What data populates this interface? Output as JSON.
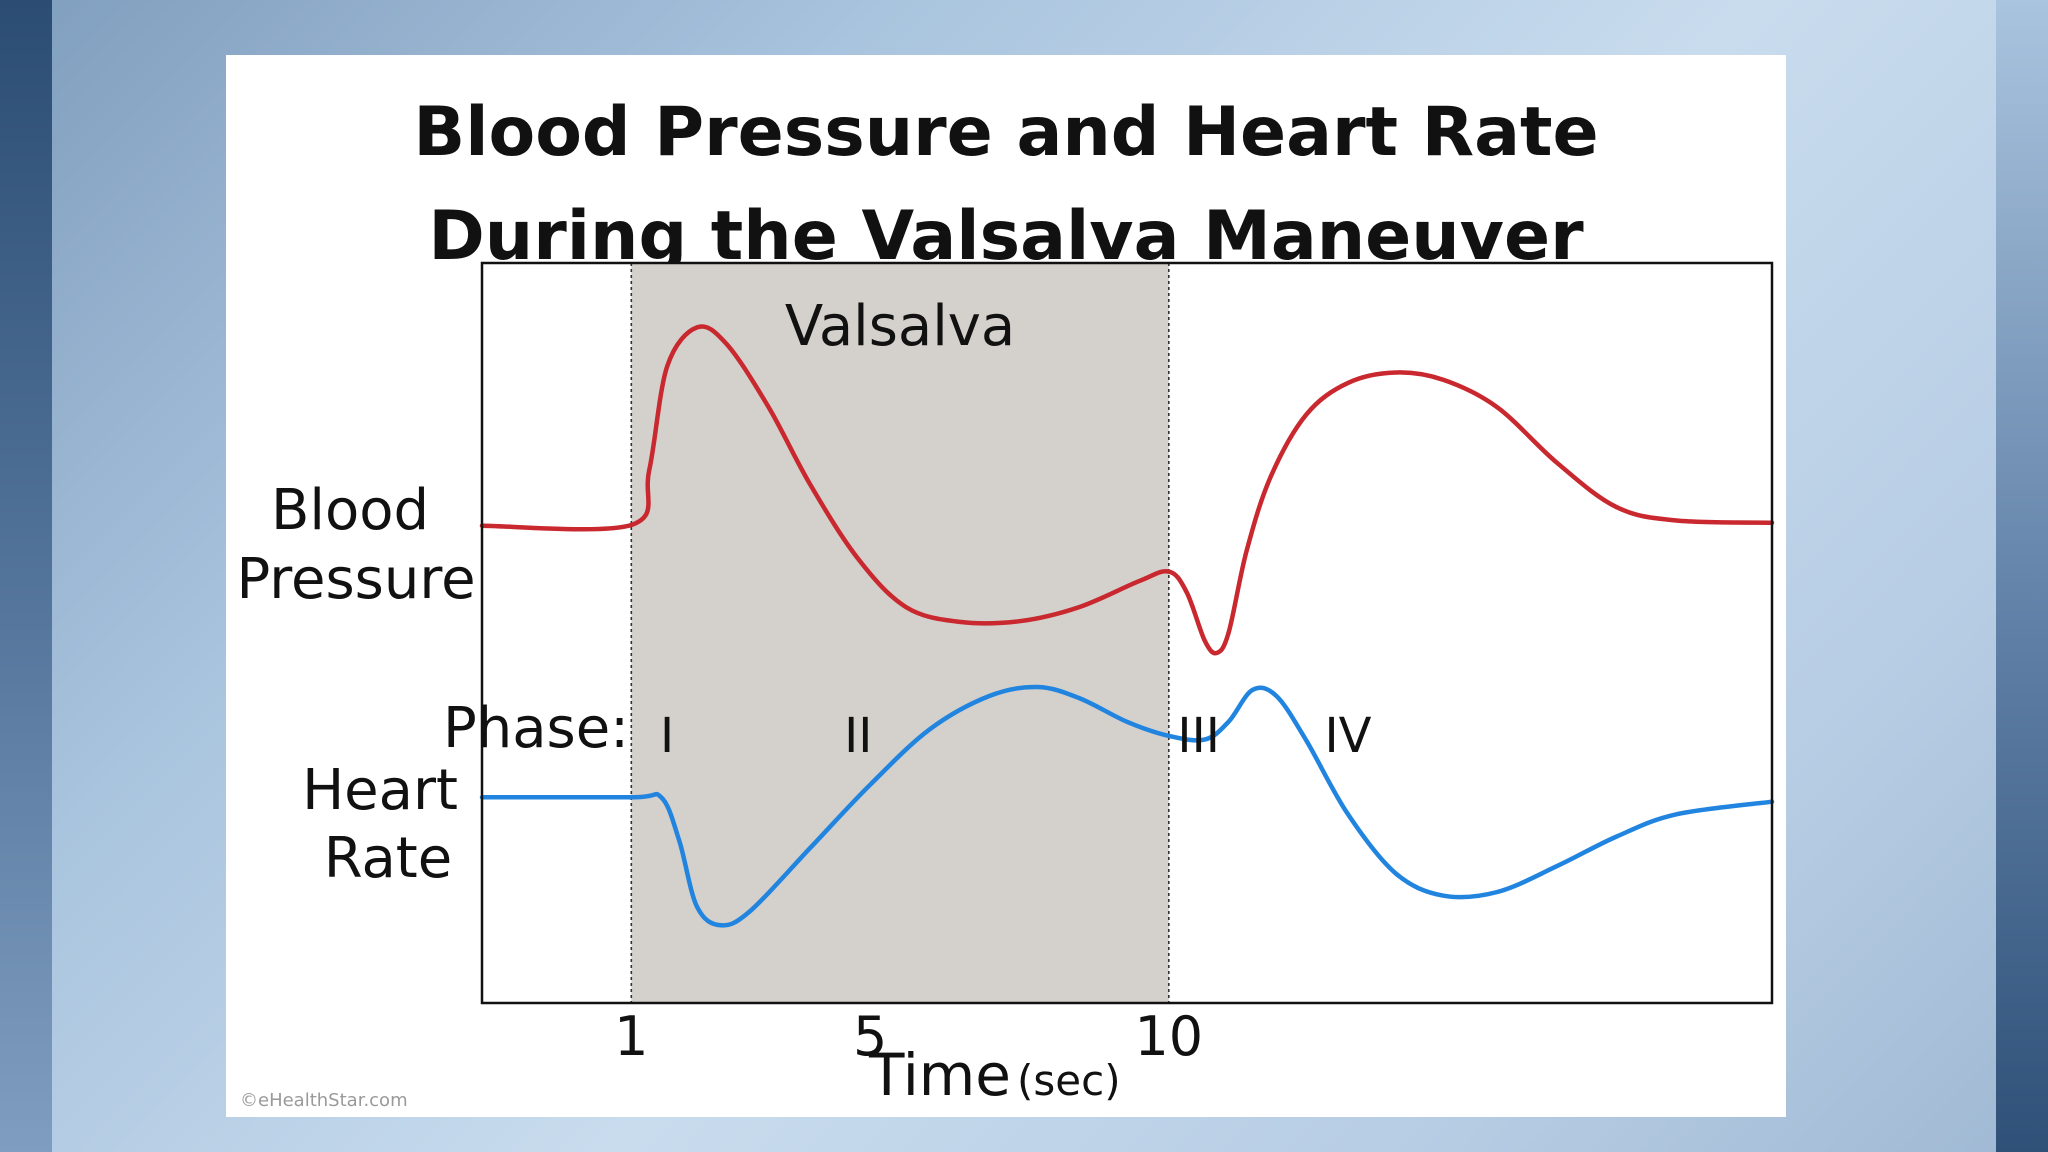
{
  "chart_data": {
    "type": "line",
    "title": [
      "Blood Pressure and Heart Rate",
      "During the Valsalva Maneuver"
    ],
    "xlabel": "Time",
    "xlabel_unit": "(sec)",
    "x_ticks": [
      "1",
      "5",
      "10"
    ],
    "x_tick_values": [
      1,
      5,
      10
    ],
    "xlim": [
      -1.5,
      20.1
    ],
    "ylim": [
      0,
      100
    ],
    "shaded_region": {
      "label": "Valsalva",
      "x": [
        1,
        10
      ],
      "color": "#d4d0cc"
    },
    "phase_label": "Phase:",
    "phases": [
      {
        "label": "I",
        "x": 1.6
      },
      {
        "label": "II",
        "x": 4.8
      },
      {
        "label": "III",
        "x": 10.5
      },
      {
        "label": "IV",
        "x": 13.0
      }
    ],
    "series": [
      {
        "name": "Blood Pressure",
        "label_lines": [
          "Blood",
          "Pressure"
        ],
        "color": "#c8282e",
        "points": [
          [
            -1.5,
            64.5
          ],
          [
            1.0,
            64.6
          ],
          [
            1.3,
            72
          ],
          [
            1.6,
            86
          ],
          [
            2.1,
            91.3
          ],
          [
            2.6,
            89
          ],
          [
            3.3,
            80.5
          ],
          [
            4.0,
            70
          ],
          [
            4.8,
            60
          ],
          [
            5.6,
            53.5
          ],
          [
            6.5,
            51.5
          ],
          [
            7.5,
            51.6
          ],
          [
            8.5,
            53.5
          ],
          [
            9.5,
            57
          ],
          [
            10.0,
            58.3
          ],
          [
            10.3,
            55.5
          ],
          [
            10.6,
            49
          ],
          [
            10.8,
            47.3
          ],
          [
            11.0,
            50
          ],
          [
            11.3,
            61
          ],
          [
            11.7,
            71
          ],
          [
            12.3,
            79.5
          ],
          [
            13.0,
            83.8
          ],
          [
            13.8,
            85.2
          ],
          [
            14.6,
            84.2
          ],
          [
            15.5,
            80.5
          ],
          [
            16.5,
            73
          ],
          [
            17.5,
            67
          ],
          [
            18.5,
            65.2
          ],
          [
            20.1,
            64.9
          ]
        ]
      },
      {
        "name": "Heart Rate",
        "label_lines": [
          "Heart",
          "Rate"
        ],
        "color": "#2185e0",
        "points": [
          [
            -1.5,
            27.8
          ],
          [
            1.0,
            27.8
          ],
          [
            1.5,
            27.8
          ],
          [
            1.8,
            22
          ],
          [
            2.1,
            13
          ],
          [
            2.5,
            10.5
          ],
          [
            3.0,
            12.5
          ],
          [
            4.0,
            21
          ],
          [
            5.0,
            29.5
          ],
          [
            6.0,
            37
          ],
          [
            7.0,
            41.5
          ],
          [
            7.8,
            42.7
          ],
          [
            8.5,
            41.2
          ],
          [
            9.3,
            38
          ],
          [
            10.0,
            36.1
          ],
          [
            10.6,
            35.6
          ],
          [
            11.0,
            38
          ],
          [
            11.4,
            42.3
          ],
          [
            11.8,
            41.5
          ],
          [
            12.3,
            35.5
          ],
          [
            13.0,
            25.5
          ],
          [
            13.8,
            17.5
          ],
          [
            14.6,
            14.5
          ],
          [
            15.5,
            15
          ],
          [
            16.5,
            18.5
          ],
          [
            17.5,
            22.5
          ],
          [
            18.5,
            25.5
          ],
          [
            20.1,
            27.2
          ]
        ]
      }
    ]
  },
  "credit": "©eHealthStar.com",
  "colors": {
    "frame": "#111111",
    "grid_dotted": "#333333"
  }
}
